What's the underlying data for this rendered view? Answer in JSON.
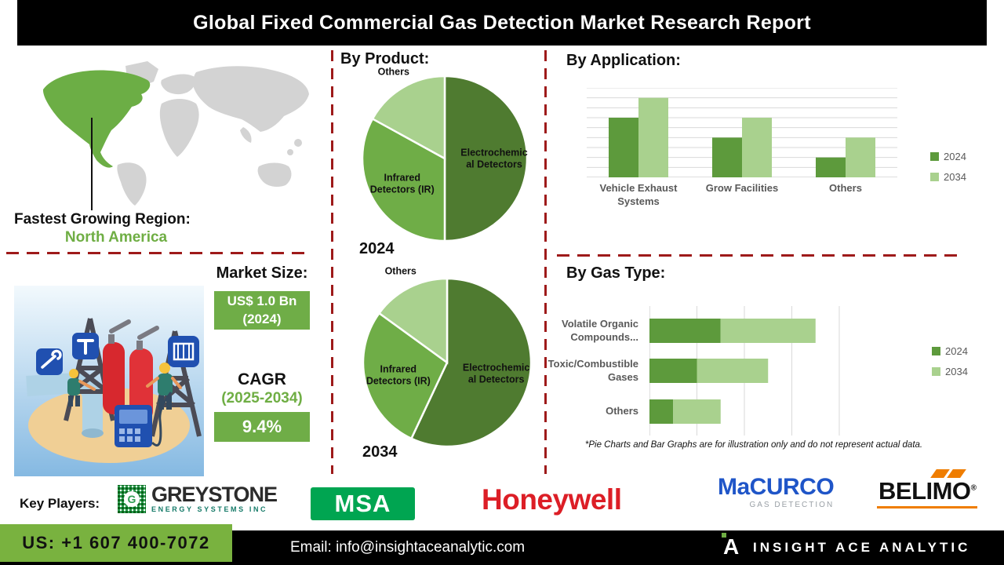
{
  "banner": {
    "title": "Global Fixed Commercial Gas Detection Market Research Report"
  },
  "left": {
    "fastest_growing_label": "Fastest Growing Region:",
    "fastest_growing_value": "North America",
    "market_size_label": "Market Size:",
    "market_size_value": "US$ 1.0 Bn",
    "market_size_year": "(2024)",
    "cagr_label": "CAGR",
    "cagr_period": "(2025-2034)",
    "cagr_value": "9.4%"
  },
  "sections": {
    "product": "By Product:",
    "application": "By Application:",
    "gas_type": "By Gas Type:"
  },
  "footnote": "*Pie Charts and Bar Graphs are for illustration only and do not represent actual data.",
  "key_players": {
    "label": "Key Players:",
    "brands": [
      {
        "name": "GREYSTONE",
        "sub": "ENERGY SYSTEMS INC"
      },
      {
        "name": "MSA",
        "sub": ""
      },
      {
        "name": "Honeywell",
        "sub": ""
      },
      {
        "name": "MaCURCO",
        "sub": "GAS DETECTION"
      },
      {
        "name": "BELIMO",
        "sub": ""
      }
    ]
  },
  "footer": {
    "phone": "US: +1 607 400-7072",
    "email": "Email: info@insightaceanalytic.com",
    "brand": "INSIGHT ACE ANALYTIC"
  },
  "colors": {
    "green_dark": "#4f7b30",
    "green_mid": "#6fad47",
    "green_light": "#a9d18e",
    "bar_2024": "#5d9a3c",
    "dashed_red": "#9e1a1a",
    "footer_green": "#79b23f",
    "honeywell_red": "#dc1e26",
    "macurco_blue": "#1f55c8",
    "msa_green": "#00a551",
    "belimo_orange": "#ef7d00",
    "map_highlight": "#6cae45",
    "map_land": "#d3d3d3"
  },
  "chart_data": [
    {
      "type": "pie",
      "title": "2024",
      "subtitle": "By Product:",
      "slices": [
        {
          "label": "Electrochemical Detectors",
          "value": 50,
          "color": "#4f7b30",
          "label_outside": false
        },
        {
          "label": "Infrared Detectors (IR)",
          "value": 33,
          "color": "#6fad47",
          "label_outside": false
        },
        {
          "label": "Others",
          "value": 17,
          "color": "#a9d18e",
          "label_outside": true
        }
      ]
    },
    {
      "type": "pie",
      "title": "2034",
      "subtitle": "By Product:",
      "slices": [
        {
          "label": "Electrochemical Detectors",
          "value": 57,
          "color": "#4f7b30",
          "label_outside": false
        },
        {
          "label": "Infrared Detectors (IR)",
          "value": 28,
          "color": "#6fad47",
          "label_outside": false
        },
        {
          "label": "Others",
          "value": 15,
          "color": "#a9d18e",
          "label_outside": true
        }
      ]
    },
    {
      "type": "bar",
      "title": "By Application:",
      "categories": [
        "Vehicle Exhaust Systems",
        "Grow Facilities",
        "Others"
      ],
      "series": [
        {
          "name": "2024",
          "color": "#5d9a3c",
          "values": [
            3,
            2,
            1
          ]
        },
        {
          "name": "2034",
          "color": "#a9d18e",
          "values": [
            4,
            3,
            2
          ]
        }
      ],
      "ylim": [
        0,
        4.5
      ],
      "grid_step": 0.5,
      "legend_position": "right",
      "note": "values are relative units; chart is illustrative"
    },
    {
      "type": "bar",
      "subtype": "horizontal-stacked",
      "title": "By Gas Type:",
      "categories": [
        "Volatile Organic Compounds...",
        "Toxic/Combustible Gases",
        "Others"
      ],
      "series": [
        {
          "name": "2024",
          "color": "#5d9a3c",
          "values": [
            3,
            2,
            1
          ]
        },
        {
          "name": "2034",
          "color": "#a9d18e",
          "values": [
            4,
            3,
            2
          ]
        }
      ],
      "xlim": [
        0,
        8
      ],
      "grid_step": 2,
      "legend_position": "right",
      "note": "values are relative units; chart is illustrative"
    }
  ]
}
